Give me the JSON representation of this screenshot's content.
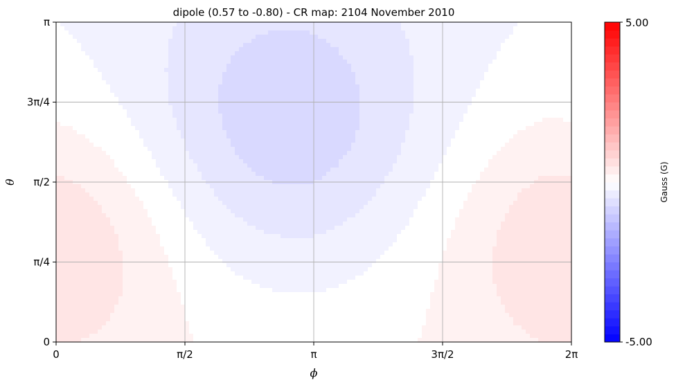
{
  "chart_data": {
    "type": "heatmap",
    "title": "dipole (0.57 to -0.80) - CR map: 2104 November 2010",
    "xlabel": "ϕ",
    "ylabel": "θ",
    "x_range": [
      0,
      6.283185
    ],
    "y_range": [
      0,
      3.141593
    ],
    "x_ticks": [
      {
        "value": 0,
        "label": "0"
      },
      {
        "value": 1.570796,
        "label": "π/2"
      },
      {
        "value": 3.141593,
        "label": "π"
      },
      {
        "value": 4.712389,
        "label": "3π/2"
      },
      {
        "value": 6.283185,
        "label": "2π"
      }
    ],
    "y_ticks": [
      {
        "value": 0,
        "label": "0"
      },
      {
        "value": 0.785398,
        "label": "π/4"
      },
      {
        "value": 1.570796,
        "label": "π/2"
      },
      {
        "value": 2.356194,
        "label": "3π/4"
      },
      {
        "value": 3.141593,
        "label": "π"
      }
    ],
    "grid": true,
    "colorbar": {
      "label": "Gauss (G)",
      "min": -5.0,
      "max": 5.0,
      "min_label": "-5.00",
      "max_label": "5.00",
      "colormap": "bwr",
      "color_min": "#0000ff",
      "color_mid": "#ffffff",
      "color_max": "#ff0000"
    },
    "field": {
      "model": "dipole",
      "max_value": 0.57,
      "min_value": -0.8,
      "max_location": {
        "phi": 0.0,
        "theta": 1.0
      },
      "min_location": {
        "phi": 2.82,
        "theta": 2.16
      }
    }
  }
}
